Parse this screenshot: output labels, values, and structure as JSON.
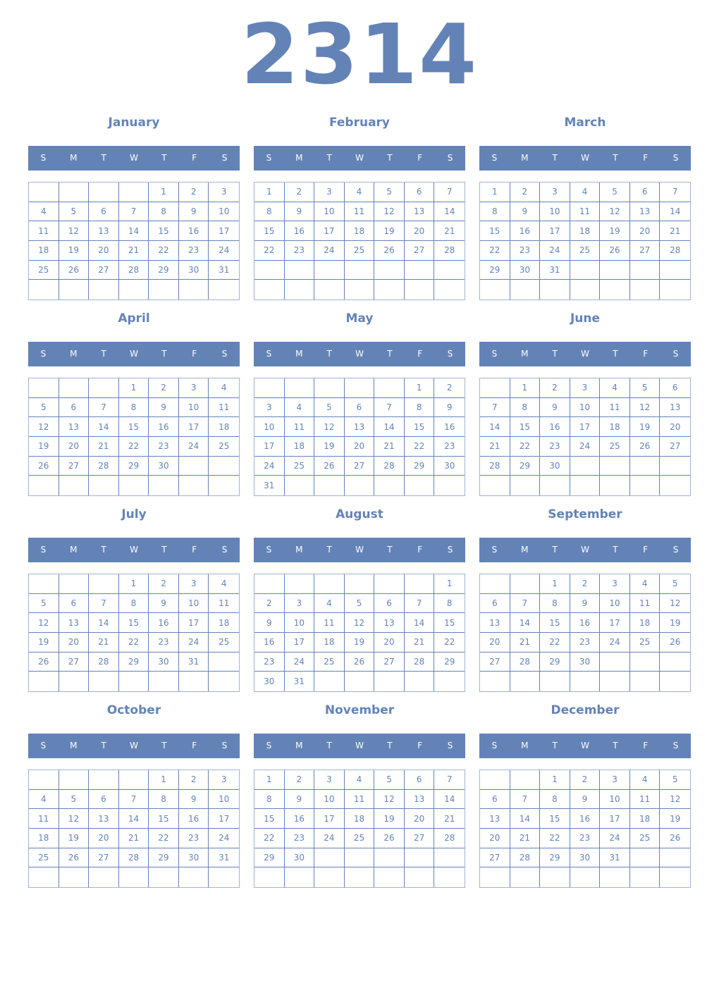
{
  "year": "2314",
  "weekdays": [
    "S",
    "M",
    "T",
    "W",
    "T",
    "F",
    "S"
  ],
  "color": "#6383b7",
  "months": [
    {
      "name": "January",
      "first_weekday": 4,
      "days": 31
    },
    {
      "name": "February",
      "first_weekday": 0,
      "days": 28
    },
    {
      "name": "March",
      "first_weekday": 0,
      "days": 31
    },
    {
      "name": "April",
      "first_weekday": 3,
      "days": 30
    },
    {
      "name": "May",
      "first_weekday": 5,
      "days": 31
    },
    {
      "name": "June",
      "first_weekday": 1,
      "days": 30
    },
    {
      "name": "July",
      "first_weekday": 3,
      "days": 31
    },
    {
      "name": "August",
      "first_weekday": 6,
      "days": 31
    },
    {
      "name": "September",
      "first_weekday": 2,
      "days": 30
    },
    {
      "name": "October",
      "first_weekday": 4,
      "days": 31
    },
    {
      "name": "November",
      "first_weekday": 0,
      "days": 30
    },
    {
      "name": "December",
      "first_weekday": 2,
      "days": 31
    }
  ]
}
